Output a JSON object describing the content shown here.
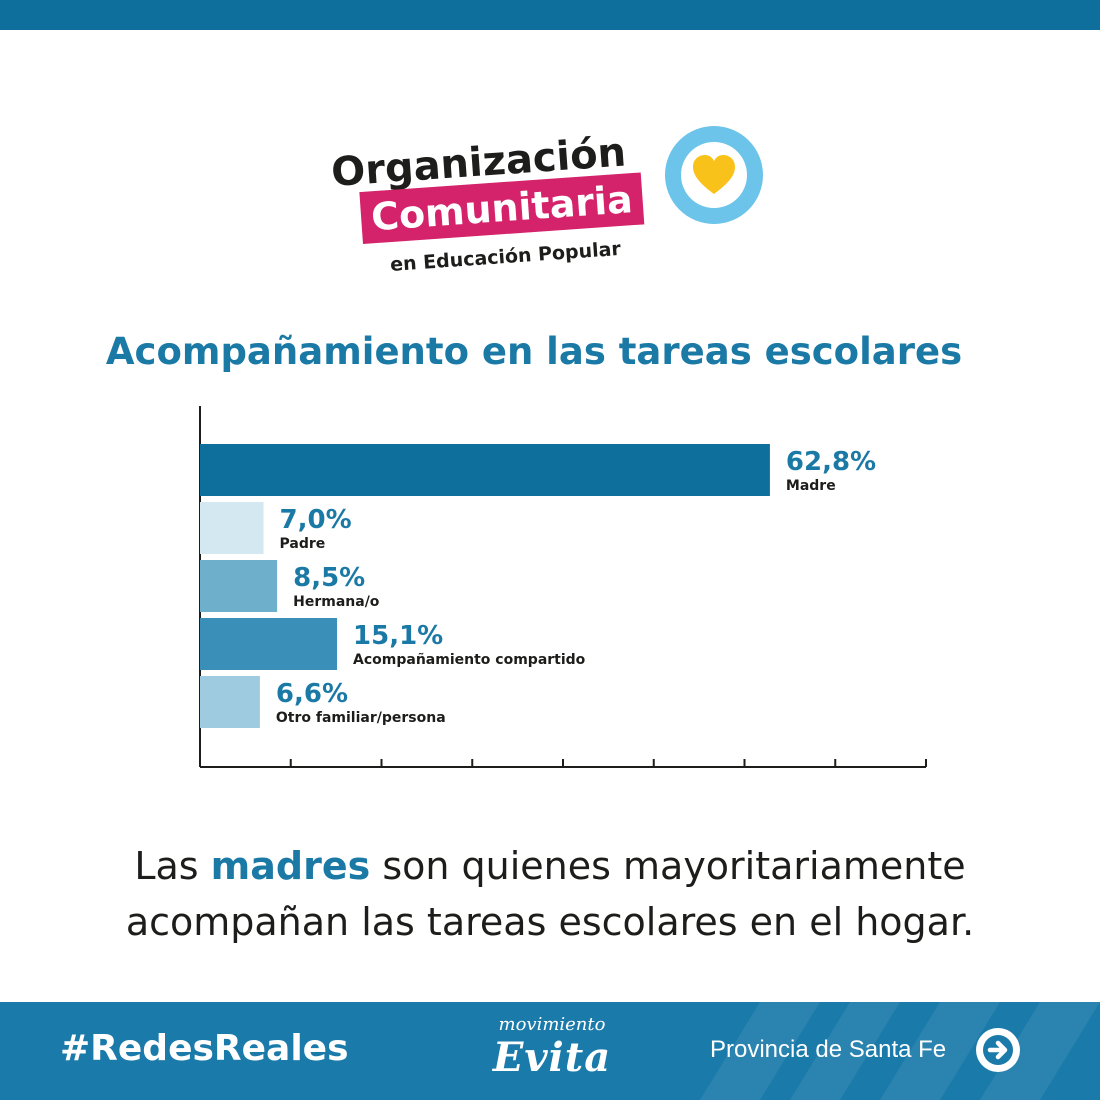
{
  "colors": {
    "primary": "#1b79a6",
    "bar_madre": "#0f6f9c",
    "bar_padre": "#d4e8f1",
    "bar_hermana": "#6eb0cc",
    "bar_compartido": "#3a8fb8",
    "bar_otro": "#9ecbdf",
    "logo_pink": "#d4236b",
    "logo_blue": "#6cc4ea",
    "logo_yellow": "#f9c21b"
  },
  "logo": {
    "line1": "Organización",
    "line2": "Comunitaria",
    "line3": "en Educación Popular",
    "icon": "heart-icon"
  },
  "chart_data": {
    "type": "bar",
    "orientation": "horizontal",
    "title": "Acompañamiento en las tareas escolares",
    "xlabel": "",
    "ylabel": "",
    "xlim": [
      0,
      80
    ],
    "grid": false,
    "categories": [
      "Madre",
      "Padre",
      "Hermana/o",
      "Acompañamiento compartido",
      "Otro familiar/persona"
    ],
    "values": [
      62.8,
      7.0,
      8.5,
      15.1,
      6.6
    ],
    "value_labels": [
      "62,8%",
      "7,0%",
      "8,5%",
      "15,1%",
      "6,6%"
    ]
  },
  "summary": {
    "part1": "Las ",
    "highlight": "madres",
    "part2": " son quienes mayoritariamente",
    "line2": "acompañan las tareas escolares en el hogar."
  },
  "footer": {
    "hashtag": "#RedesReales",
    "brand_top": "movimiento",
    "brand_bottom": "Evita",
    "province": "Provincia de Santa Fe",
    "arrow_icon": "arrow-right-circle-icon"
  }
}
